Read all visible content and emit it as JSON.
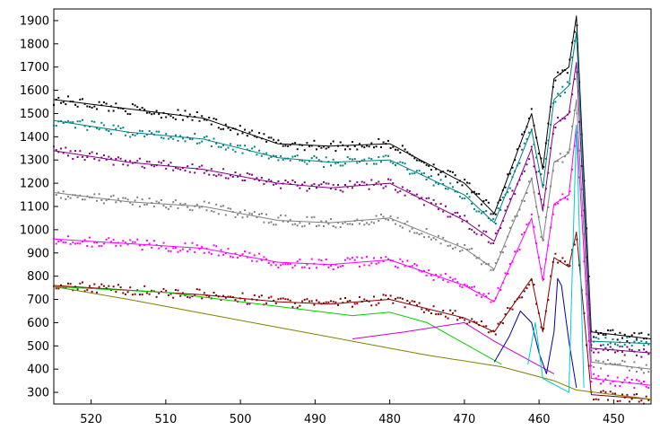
{
  "chart_data": {
    "type": "line",
    "title": "",
    "xlabel": "",
    "ylabel": "",
    "x_axis": {
      "range": [
        525,
        445
      ],
      "reversed": true,
      "ticks": [
        520,
        510,
        500,
        490,
        480,
        470,
        460,
        450
      ]
    },
    "y_axis": {
      "range": [
        250,
        1950
      ],
      "ticks": [
        300,
        400,
        500,
        600,
        700,
        800,
        900,
        1000,
        1100,
        1200,
        1300,
        1400,
        1500,
        1600,
        1700,
        1800,
        1900
      ]
    },
    "grid": false,
    "legend": "none",
    "markers": "raw data points drawn as small dots around each fitted line",
    "series": [
      {
        "color": "#000000",
        "x": [
          525,
          515,
          505,
          495,
          488,
          480,
          470,
          466,
          461,
          459.5,
          458,
          456,
          455,
          453,
          445
        ],
        "y": [
          1560,
          1520,
          1480,
          1370,
          1360,
          1370,
          1200,
          1070,
          1500,
          1260,
          1650,
          1700,
          1920,
          560,
          530
        ]
      },
      {
        "color": "#008080",
        "x": [
          525,
          515,
          505,
          495,
          488,
          480,
          470,
          466,
          461,
          459.5,
          458,
          456,
          455,
          453,
          445
        ],
        "y": [
          1470,
          1420,
          1390,
          1310,
          1290,
          1300,
          1150,
          1030,
          1430,
          1180,
          1560,
          1620,
          1850,
          520,
          510
        ]
      },
      {
        "color": "#800080",
        "x": [
          525,
          515,
          505,
          495,
          488,
          480,
          470,
          466,
          461,
          459.5,
          458,
          456,
          455,
          453,
          445
        ],
        "y": [
          1340,
          1290,
          1260,
          1200,
          1180,
          1200,
          1040,
          950,
          1350,
          1080,
          1450,
          1500,
          1720,
          490,
          470
        ]
      },
      {
        "color": "#808080",
        "x": [
          525,
          515,
          505,
          495,
          488,
          480,
          470,
          466,
          461,
          459.5,
          458,
          456,
          455,
          453,
          445
        ],
        "y": [
          1160,
          1120,
          1100,
          1040,
          1030,
          1050,
          920,
          830,
          1220,
          950,
          1290,
          1330,
          1560,
          430,
          400
        ]
      },
      {
        "color": "#ff00ff",
        "x": [
          525,
          515,
          505,
          495,
          488,
          480,
          470,
          466,
          461,
          459.5,
          458,
          456,
          455,
          453,
          445
        ],
        "y": [
          960,
          940,
          920,
          860,
          850,
          870,
          760,
          690,
          1050,
          780,
          1110,
          1150,
          1450,
          360,
          330
        ]
      },
      {
        "color": "#800000",
        "x": [
          525,
          515,
          505,
          495,
          488,
          480,
          470,
          466,
          461,
          459.5,
          458,
          456,
          455,
          453,
          445
        ],
        "y": [
          760,
          740,
          720,
          690,
          680,
          700,
          620,
          560,
          790,
          560,
          880,
          840,
          990,
          290,
          270
        ]
      },
      {
        "color": "#808000",
        "x": [
          525,
          515,
          505,
          495,
          485,
          475,
          465,
          458,
          455,
          445
        ],
        "y": [
          755,
          700,
          640,
          580,
          520,
          460,
          410,
          350,
          310,
          270
        ]
      },
      {
        "color": "#00cc00",
        "x": [
          525,
          510,
          500,
          490,
          485,
          480,
          475,
          470,
          465
        ],
        "y": [
          755,
          730,
          690,
          650,
          630,
          645,
          600,
          510,
          420
        ]
      },
      {
        "color": "#cc00cc",
        "x": [
          485,
          478,
          470,
          466,
          462,
          458
        ],
        "y": [
          530,
          560,
          600,
          520,
          450,
          380
        ]
      },
      {
        "color": "#0000aa",
        "x": [
          466,
          464,
          462.5,
          461,
          460,
          459,
          458,
          457.5,
          457,
          456,
          455
        ],
        "y": [
          430,
          540,
          650,
          600,
          470,
          380,
          560,
          790,
          760,
          520,
          320
        ]
      },
      {
        "color": "#00cccc",
        "x": [
          461.5,
          460.5,
          459.5,
          456,
          455,
          454
        ],
        "y": [
          420,
          600,
          360,
          300,
          1450,
          320
        ]
      }
    ]
  }
}
